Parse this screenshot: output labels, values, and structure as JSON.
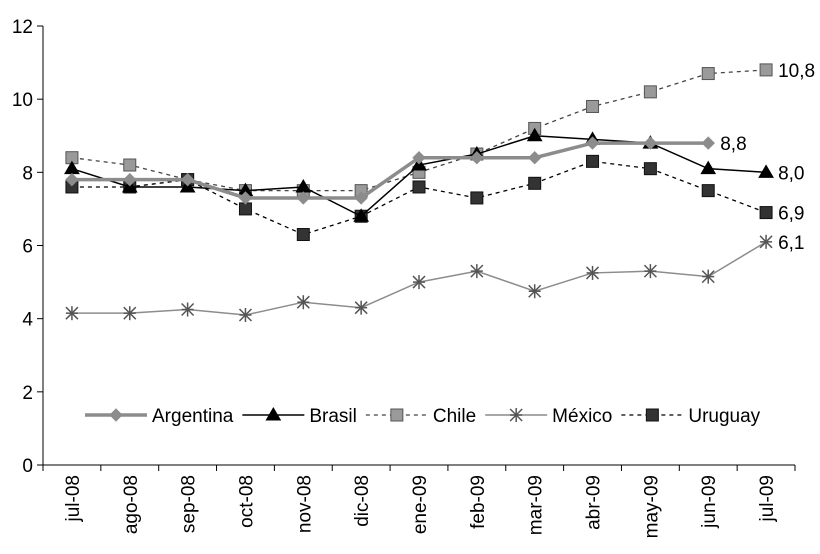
{
  "chart_data": {
    "type": "line",
    "title": "",
    "xlabel": "",
    "ylabel": "",
    "ylim": [
      0,
      12
    ],
    "yticks": [
      "0",
      "2",
      "4",
      "6",
      "8",
      "10",
      "12"
    ],
    "categories": [
      "jul-08",
      "ago-08",
      "sep-08",
      "oct-08",
      "nov-08",
      "dic-08",
      "ene-09",
      "feb-09",
      "mar-09",
      "abr-09",
      "may-09",
      "jun-09",
      "jul-09"
    ],
    "legend_position": "bottom-inside",
    "series": [
      {
        "name": "Argentina",
        "color": "#8c8c8c",
        "style": "solid-thick",
        "marker": "diamond",
        "values": [
          7.8,
          7.8,
          7.8,
          7.3,
          7.3,
          7.3,
          8.4,
          8.4,
          8.4,
          8.8,
          8.8,
          8.8,
          null
        ],
        "end_label": "8,8"
      },
      {
        "name": "Brasil",
        "color": "#000000",
        "style": "solid",
        "marker": "triangle",
        "values": [
          8.1,
          7.6,
          7.6,
          7.5,
          7.6,
          6.8,
          8.2,
          8.5,
          9.0,
          8.9,
          8.8,
          8.1,
          8.0
        ],
        "end_label": "8,0"
      },
      {
        "name": "Chile",
        "color": "#8c8c8c",
        "style": "dashed",
        "marker": "square-light",
        "values": [
          8.4,
          8.2,
          7.8,
          7.5,
          7.5,
          7.5,
          8.0,
          8.5,
          9.2,
          9.8,
          10.2,
          10.7,
          10.8
        ],
        "end_label": "10,8"
      },
      {
        "name": "México",
        "color": "#8c8c8c",
        "style": "solid",
        "marker": "asterisk",
        "values": [
          4.15,
          4.15,
          4.25,
          4.1,
          4.45,
          4.3,
          5.0,
          5.3,
          4.75,
          5.25,
          5.3,
          5.15,
          6.1
        ],
        "end_label": "6,1"
      },
      {
        "name": "Uruguay",
        "color": "#000000",
        "style": "dashed",
        "marker": "square-dark",
        "values": [
          7.6,
          7.6,
          7.8,
          7.0,
          6.3,
          6.8,
          7.6,
          7.3,
          7.7,
          8.3,
          8.1,
          7.5,
          6.9
        ],
        "end_label": "6,9"
      }
    ]
  }
}
